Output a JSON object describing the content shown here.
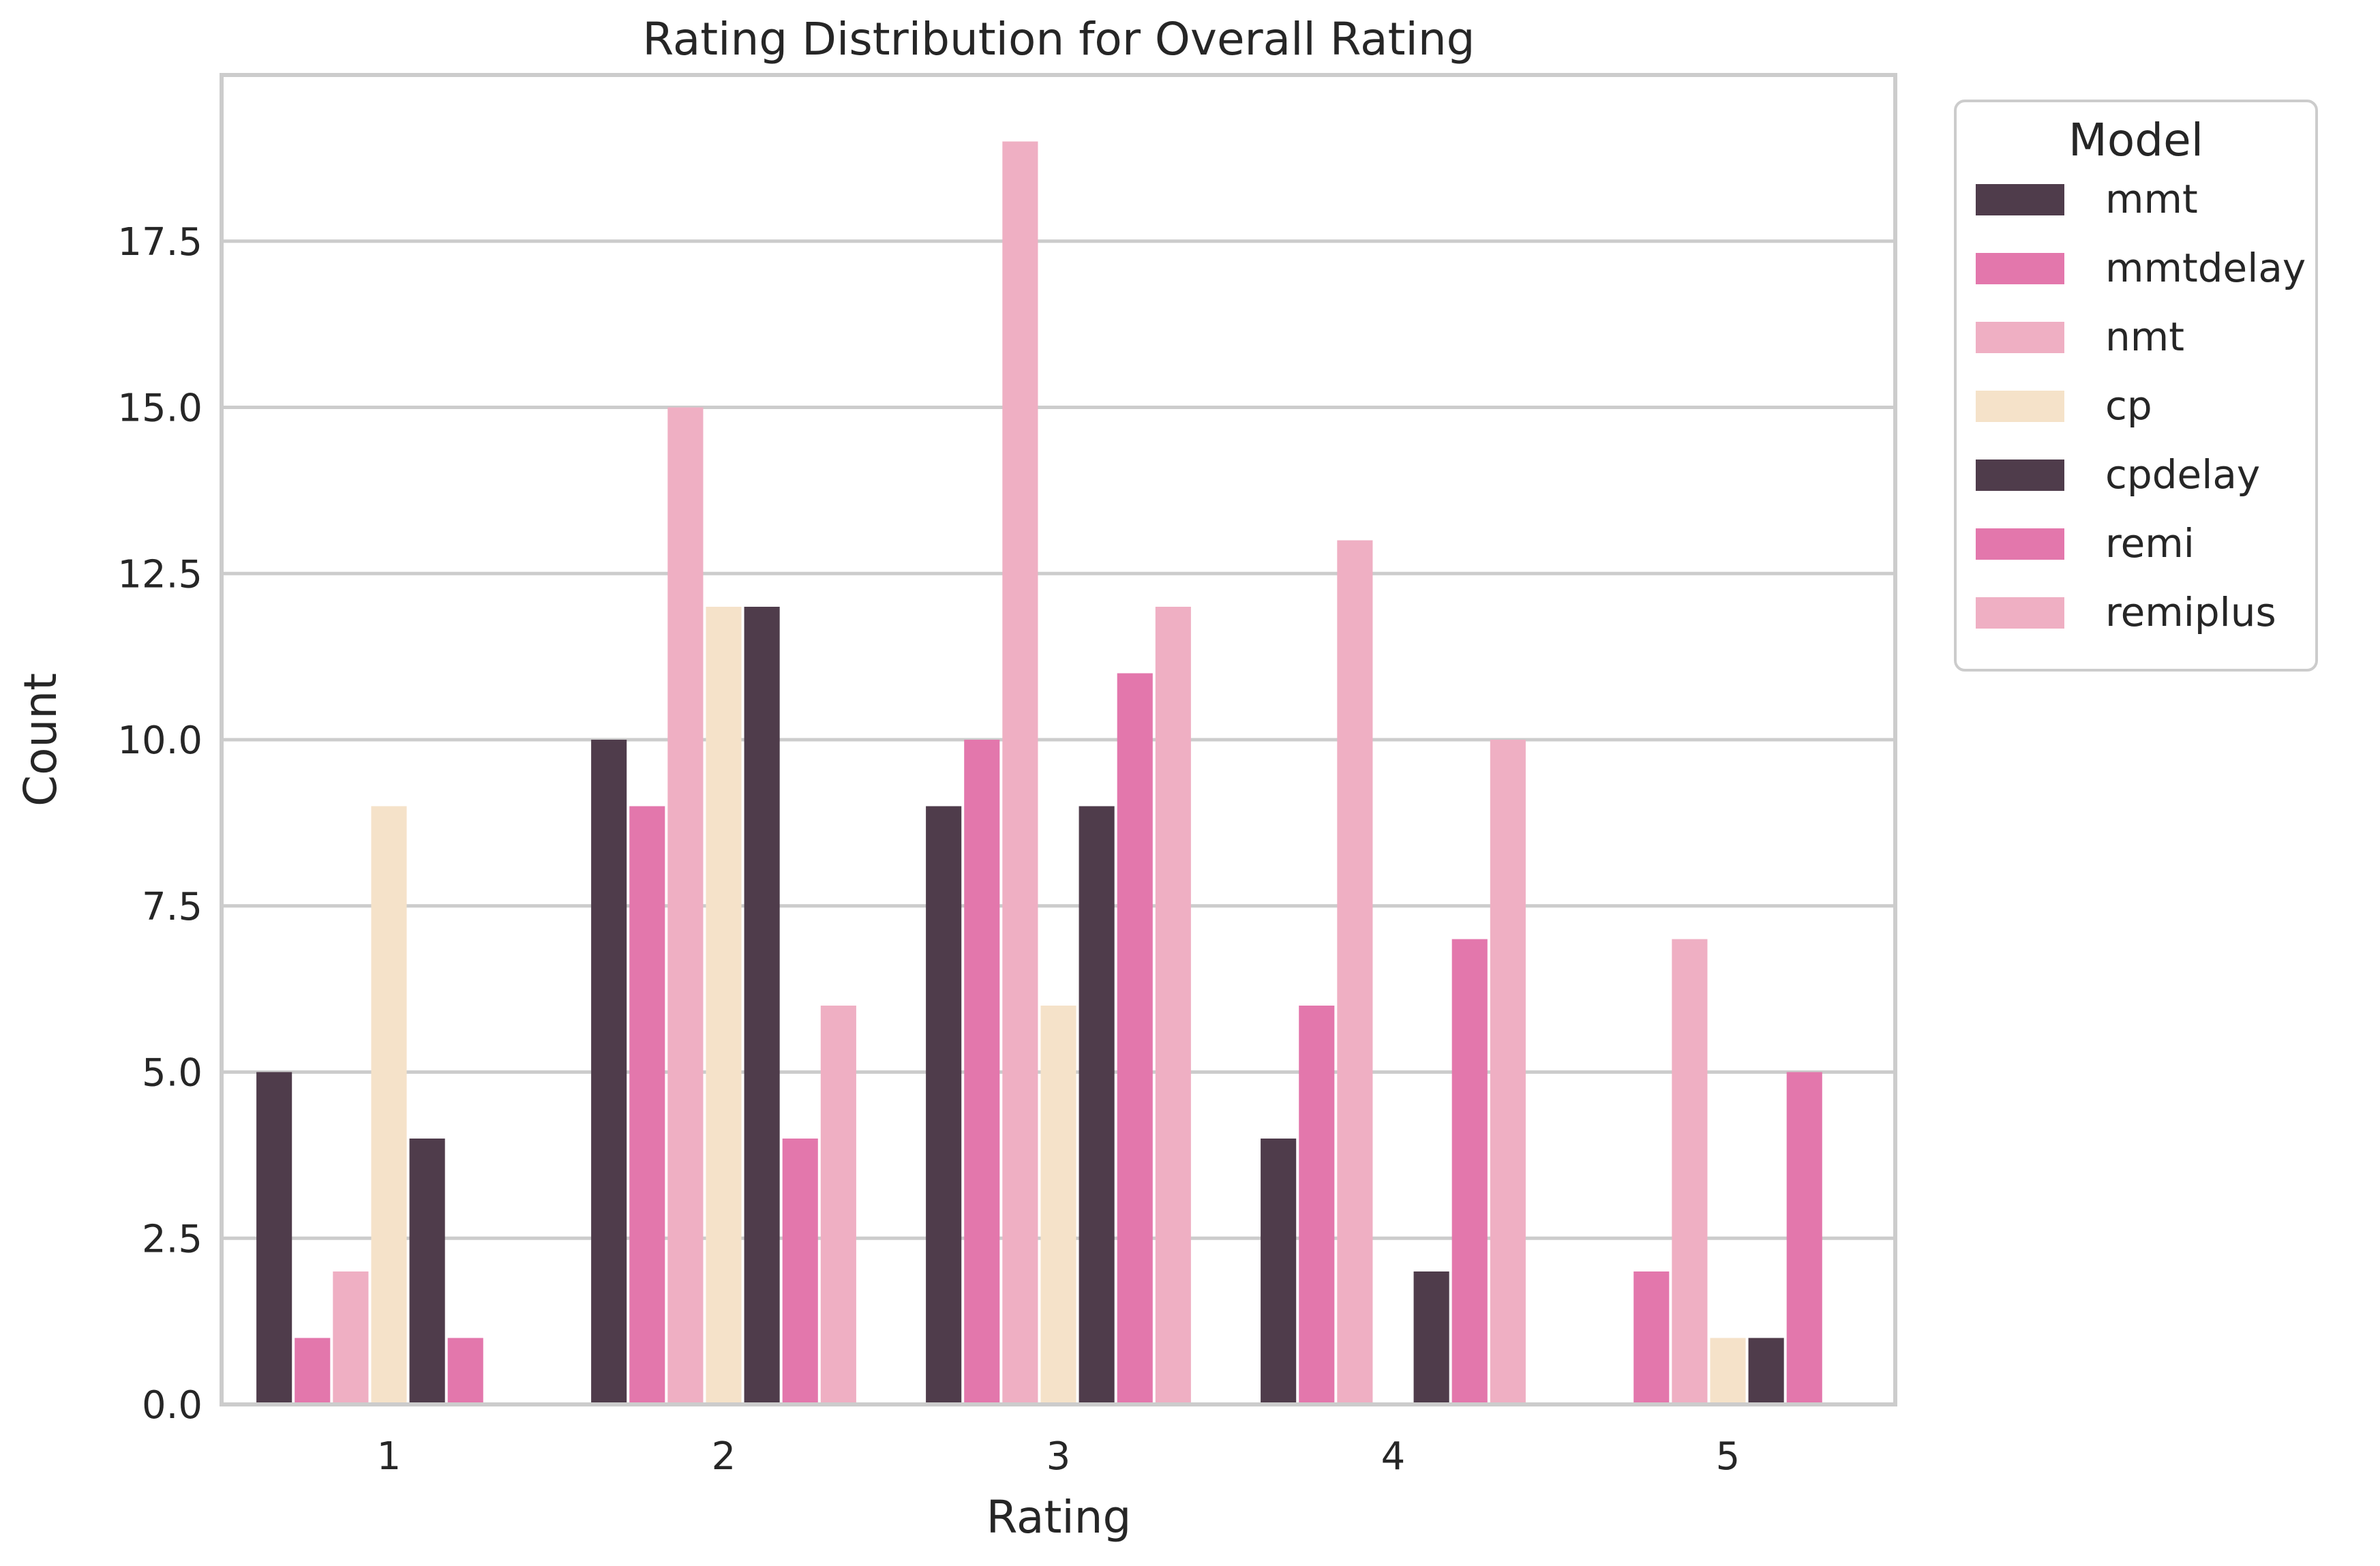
{
  "chart_data": {
    "type": "bar",
    "title": "Rating Distribution for Overall Rating",
    "xlabel": "Rating",
    "ylabel": "Count",
    "categories": [
      "1",
      "2",
      "3",
      "4",
      "5"
    ],
    "ylim": [
      0,
      20
    ],
    "yticks": [
      "0.0",
      "2.5",
      "5.0",
      "7.5",
      "10.0",
      "12.5",
      "15.0",
      "17.5"
    ],
    "grid": "horizontal",
    "legend": {
      "title": "Model",
      "placement": "outside-top-right"
    },
    "series": [
      {
        "name": "mmt",
        "color": "#4f3c4b",
        "values": [
          5,
          10,
          9,
          4,
          0
        ]
      },
      {
        "name": "mmtdelay",
        "color": "#e377ac",
        "values": [
          1,
          9,
          10,
          6,
          2
        ]
      },
      {
        "name": "nmt",
        "color": "#efafc3",
        "values": [
          2,
          15,
          19,
          13,
          7
        ]
      },
      {
        "name": "cp",
        "color": "#f5e2c9",
        "values": [
          9,
          12,
          6,
          0,
          1
        ]
      },
      {
        "name": "cpdelay",
        "color": "#4f3c4b",
        "values": [
          4,
          12,
          9,
          2,
          1
        ]
      },
      {
        "name": "remi",
        "color": "#e377ac",
        "values": [
          1,
          4,
          11,
          7,
          5
        ]
      },
      {
        "name": "remiplus",
        "color": "#efafc3",
        "values": [
          0,
          6,
          12,
          10,
          0
        ]
      }
    ]
  }
}
